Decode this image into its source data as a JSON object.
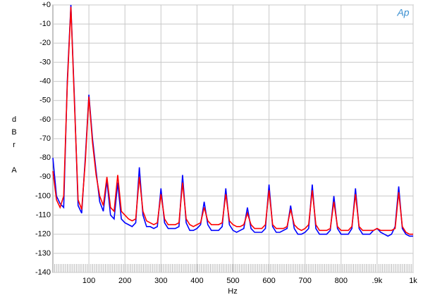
{
  "chart_data": {
    "type": "line",
    "x_label": "Hz",
    "y_label": [
      "d",
      "B",
      "r",
      "A"
    ],
    "logo": "Ap",
    "grid": true,
    "xlim": [
      0,
      1000
    ],
    "xticks": [
      100,
      200,
      300,
      400,
      500,
      600,
      700,
      800,
      {
        "value": 900,
        "label": ".9k"
      },
      {
        "value": 1000,
        "label": "1k"
      }
    ],
    "ylim": [
      -140,
      0
    ],
    "yticks": [
      {
        "value": 0,
        "label": "+0"
      },
      -10,
      -20,
      -30,
      -40,
      -50,
      -60,
      -70,
      -80,
      -90,
      -100,
      -110,
      -120,
      -130,
      -140
    ],
    "x": [
      0,
      10,
      20,
      30,
      40,
      50,
      60,
      70,
      80,
      90,
      100,
      110,
      120,
      130,
      140,
      150,
      160,
      170,
      180,
      190,
      200,
      210,
      220,
      230,
      240,
      250,
      260,
      270,
      280,
      290,
      300,
      310,
      320,
      330,
      340,
      350,
      360,
      370,
      380,
      390,
      400,
      410,
      420,
      430,
      440,
      450,
      460,
      470,
      480,
      490,
      500,
      510,
      520,
      530,
      540,
      550,
      560,
      570,
      580,
      590,
      600,
      610,
      620,
      630,
      640,
      650,
      660,
      670,
      680,
      690,
      700,
      710,
      720,
      730,
      740,
      750,
      760,
      770,
      780,
      790,
      800,
      810,
      820,
      830,
      840,
      850,
      860,
      870,
      880,
      890,
      900,
      910,
      920,
      930,
      940,
      950,
      960,
      970,
      980,
      990,
      1000
    ],
    "series": [
      {
        "color": "#0000ff",
        "values": [
          -80,
          -100,
          -104,
          -106,
          -40,
          0,
          -50,
          -105,
          -109,
          -80,
          -47,
          -70,
          -87,
          -103,
          -108,
          -92,
          -110,
          -112,
          -93,
          -112,
          -114,
          -115,
          -116,
          -114,
          -85,
          -110,
          -116,
          -116,
          -117,
          -116,
          -96,
          -114,
          -117,
          -117,
          -117,
          -116,
          -89,
          -114,
          -118,
          -118,
          -117,
          -115,
          -103,
          -115,
          -118,
          -118,
          -118,
          -116,
          -96,
          -115,
          -118,
          -119,
          -118,
          -117,
          -106,
          -117,
          -119,
          -119,
          -119,
          -117,
          -94,
          -116,
          -119,
          -119,
          -118,
          -117,
          -105,
          -117,
          -120,
          -120,
          -119,
          -117,
          -94,
          -117,
          -120,
          -120,
          -120,
          -118,
          -100,
          -117,
          -120,
          -120,
          -120,
          -117,
          -96,
          -117,
          -120,
          -120,
          -120,
          -118,
          -117,
          -119,
          -120,
          -121,
          -120,
          -116,
          -95,
          -117,
          -120,
          -121,
          -121
        ]
      },
      {
        "color": "#ff0000",
        "values": [
          -87,
          -102,
          -106,
          -100,
          -42,
          -1,
          -52,
          -102,
          -107,
          -82,
          -48,
          -72,
          -89,
          -100,
          -105,
          -90,
          -106,
          -108,
          -89,
          -108,
          -110,
          -112,
          -113,
          -112,
          -90,
          -108,
          -113,
          -114,
          -115,
          -114,
          -99,
          -112,
          -115,
          -115,
          -115,
          -114,
          -93,
          -112,
          -115,
          -116,
          -115,
          -114,
          -106,
          -113,
          -115,
          -115,
          -115,
          -114,
          -99,
          -113,
          -115,
          -116,
          -116,
          -115,
          -109,
          -115,
          -117,
          -117,
          -117,
          -115,
          -97,
          -115,
          -117,
          -117,
          -117,
          -116,
          -107,
          -115,
          -117,
          -118,
          -117,
          -115,
          -97,
          -115,
          -118,
          -118,
          -118,
          -117,
          -103,
          -116,
          -118,
          -118,
          -118,
          -116,
          -99,
          -116,
          -118,
          -118,
          -118,
          -118,
          -117,
          -118,
          -118,
          -118,
          -118,
          -117,
          -98,
          -116,
          -119,
          -120,
          -120
        ]
      }
    ]
  }
}
